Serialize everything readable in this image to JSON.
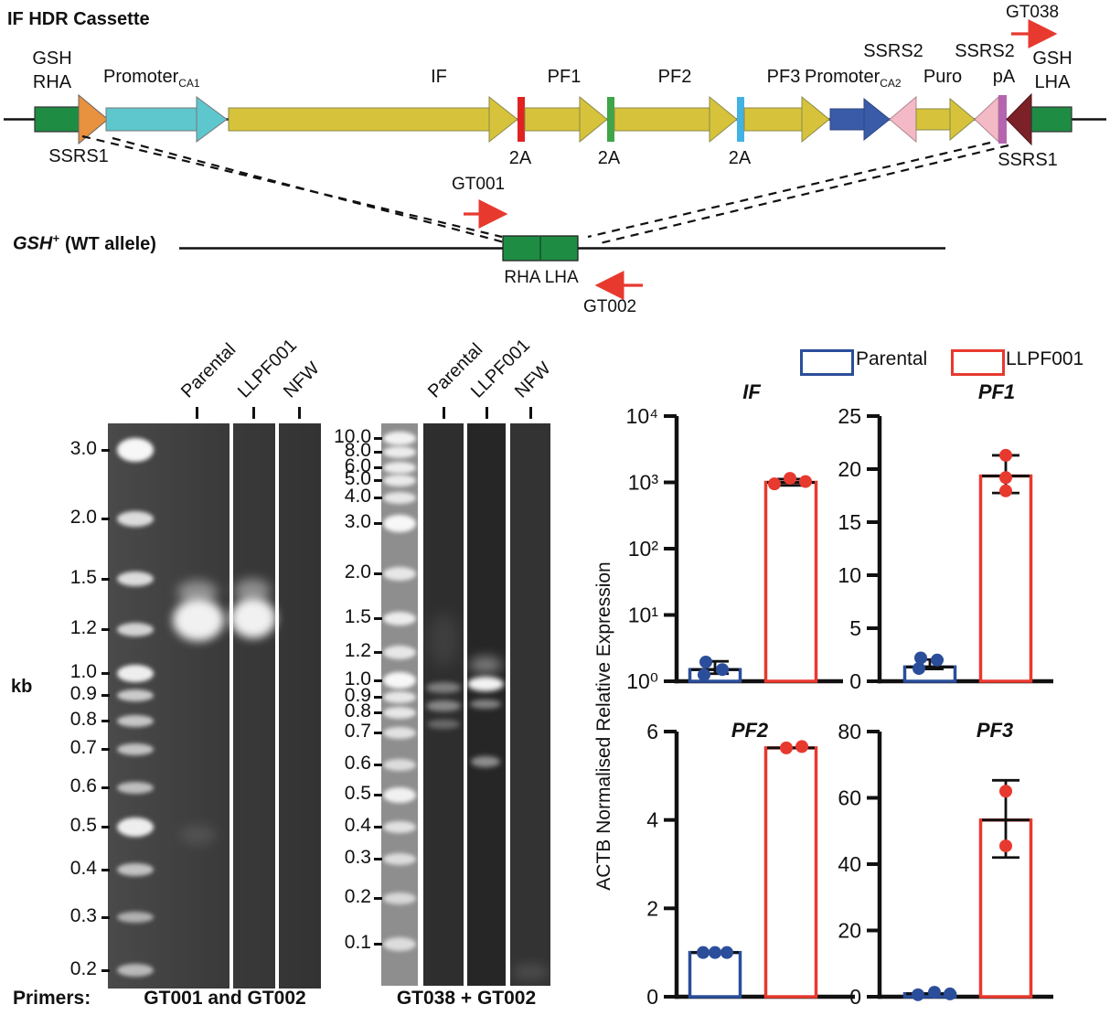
{
  "colors": {
    "green": "#1e8c43",
    "orange": "#e8913f",
    "cyan": "#5ec7ce",
    "yellow": "#d7c33b",
    "red_2a": "#e02322",
    "green_2a": "#3fa549",
    "blue_2a": "#41b2e4",
    "blue_promoter": "#3a5ca8",
    "pink": "#f3bac6",
    "purple": "#b465ae",
    "dark_red": "#7c2127",
    "primer_red": "#e8392f",
    "parental_blue": "#2b4e9b",
    "llpf_red": "#e8392f"
  },
  "cassette": {
    "title": "IF HDR Cassette",
    "gt038": "GT038",
    "gsh_rha_line1": "GSH",
    "gsh_rha_line2": "RHA",
    "promoter1": {
      "text": "Promoter",
      "sub": "CA1"
    },
    "if_label": "IF",
    "pf1": "PF1",
    "pf2": "PF2",
    "pf3": "PF3",
    "promoter2": {
      "text": "Promoter",
      "sub": "CA2"
    },
    "ssrs2_left": "SSRS2",
    "puro": "Puro",
    "ssrs2_right": "SSRS2",
    "pa": "pA",
    "gsh_lha_line1": "GSH",
    "gsh_lha_line2": "LHA",
    "ssrs1_left": "SSRS1",
    "ssrs1_right": "SSRS1",
    "two_a_1": "2A",
    "two_a_2": "2A",
    "two_a_3": "2A"
  },
  "wt_allele": {
    "gene": "GSH",
    "gene_sup": "+",
    "rest": "(WT allele)",
    "gt001": "GT001",
    "gt002": "GT002",
    "rha_lha": "RHA LHA"
  },
  "gels": {
    "unit": "kb",
    "primers_prefix": "Primers:",
    "lane_labels": [
      "Parental",
      "LLPF001",
      "NFW"
    ],
    "gel1": {
      "ladder": [
        "3.0",
        "2.0",
        "1.5",
        "1.2",
        "1.0",
        "0.9",
        "0.8",
        "0.7",
        "0.6",
        "0.5",
        "0.4",
        "0.3",
        "0.2"
      ],
      "caption": "GT001 and GT002",
      "bands": [
        {
          "lane": "Parental",
          "kb": "~1.25",
          "intensity": "strong"
        },
        {
          "lane": "LLPF001",
          "kb": "~1.25",
          "intensity": "strong"
        }
      ]
    },
    "gel2": {
      "ladder": [
        "10.0",
        "8.0",
        "6.0",
        "5.0",
        "4.0",
        "3.0",
        "2.0",
        "1.5",
        "1.2",
        "1.0",
        "0.9",
        "0.8",
        "0.7",
        "0.6",
        "0.5",
        "0.4",
        "0.3",
        "0.2",
        "0.1"
      ],
      "caption": "GT038 + GT002",
      "bands": [
        {
          "lane": "Parental",
          "kb": "~0.95",
          "intensity": "faint"
        },
        {
          "lane": "Parental",
          "kb": "~0.85",
          "intensity": "faint"
        },
        {
          "lane": "Parental",
          "kb": "~0.75",
          "intensity": "faint"
        },
        {
          "lane": "LLPF001",
          "kb": "~1.0",
          "intensity": "strong"
        },
        {
          "lane": "LLPF001",
          "kb": "~0.85",
          "intensity": "faint"
        },
        {
          "lane": "LLPF001",
          "kb": "~0.6",
          "intensity": "faint"
        }
      ]
    }
  },
  "charts": {
    "ylabel": "ACTB Normalised Relative Expression",
    "legend": [
      {
        "label": "Parental",
        "color": "#2b4e9b"
      },
      {
        "label": "LLPF001",
        "color": "#e8392f"
      }
    ]
  },
  "chart_data": [
    {
      "type": "bar",
      "title": "IF",
      "scale": "log",
      "ylim": [
        1,
        10000
      ],
      "yticks": [
        1,
        10,
        100,
        1000,
        10000
      ],
      "ytick_labels": [
        "10⁰",
        "10¹",
        "10²",
        "10³",
        "10⁴"
      ],
      "categories": [
        "Parental",
        "LLPF001"
      ],
      "series": [
        {
          "name": "Parental",
          "color": "#2b4e9b",
          "mean": 1.5,
          "err": [
            1.3,
            2.0
          ],
          "points": [
            1.95,
            1.25,
            1.5
          ],
          "point_dx": [
            -10,
            -12,
            8
          ]
        },
        {
          "name": "LLPF001",
          "color": "#e8392f",
          "mean": 1000,
          "err": [
            900,
            1120
          ],
          "points": [
            950,
            1150,
            1030
          ],
          "point_dx": [
            -18,
            -1,
            16
          ]
        }
      ]
    },
    {
      "type": "bar",
      "title": "PF1",
      "scale": "linear",
      "ylim": [
        0,
        25
      ],
      "yticks": [
        0,
        5,
        10,
        15,
        20,
        25
      ],
      "ytick_labels": [
        "0",
        "5",
        "10",
        "15",
        "20",
        "25"
      ],
      "categories": [
        "Parental",
        "LLPF001"
      ],
      "series": [
        {
          "name": "Parental",
          "color": "#2b4e9b",
          "mean": 1.35,
          "err": [
            1.15,
            2.05
          ],
          "points": [
            2.2,
            1.2,
            2.0
          ],
          "point_dx": [
            -10,
            -12,
            8
          ]
        },
        {
          "name": "LLPF001",
          "color": "#e8392f",
          "mean": 19.35,
          "err": [
            17.75,
            21.3
          ],
          "points": [
            21.3,
            19.2,
            17.95
          ],
          "point_dx": [
            0,
            0,
            0
          ]
        }
      ]
    },
    {
      "type": "bar",
      "title": "PF2",
      "scale": "linear",
      "ylim": [
        0,
        6
      ],
      "yticks": [
        0,
        2,
        4,
        6
      ],
      "ytick_labels": [
        "0",
        "2",
        "4",
        "6"
      ],
      "categories": [
        "Parental",
        "LLPF001"
      ],
      "series": [
        {
          "name": "Parental",
          "color": "#2b4e9b",
          "mean": 1.0,
          "points": [
            1.0,
            1.0,
            1.0
          ],
          "point_dx": [
            -13,
            0,
            13
          ]
        },
        {
          "name": "LLPF001",
          "color": "#e8392f",
          "mean": 5.63,
          "points": [
            5.63,
            5.66
          ],
          "point_dx": [
            -5,
            12
          ]
        }
      ]
    },
    {
      "type": "bar",
      "title": "PF3",
      "scale": "linear",
      "ylim": [
        0,
        80
      ],
      "yticks": [
        0,
        20,
        40,
        60,
        80
      ],
      "ytick_labels": [
        "0",
        "20",
        "40",
        "60",
        "80"
      ],
      "categories": [
        "Parental",
        "LLPF001"
      ],
      "series": [
        {
          "name": "Parental",
          "color": "#2b4e9b",
          "mean": 0.9,
          "points": [
            0.6,
            1.35,
            0.85
          ],
          "point_dx": [
            -13,
            5,
            22
          ]
        },
        {
          "name": "LLPF001",
          "color": "#e8392f",
          "mean": 53.3,
          "err": [
            42,
            65.3
          ],
          "points": [
            62,
            45.5
          ],
          "point_dx": [
            0,
            0
          ]
        }
      ]
    }
  ]
}
